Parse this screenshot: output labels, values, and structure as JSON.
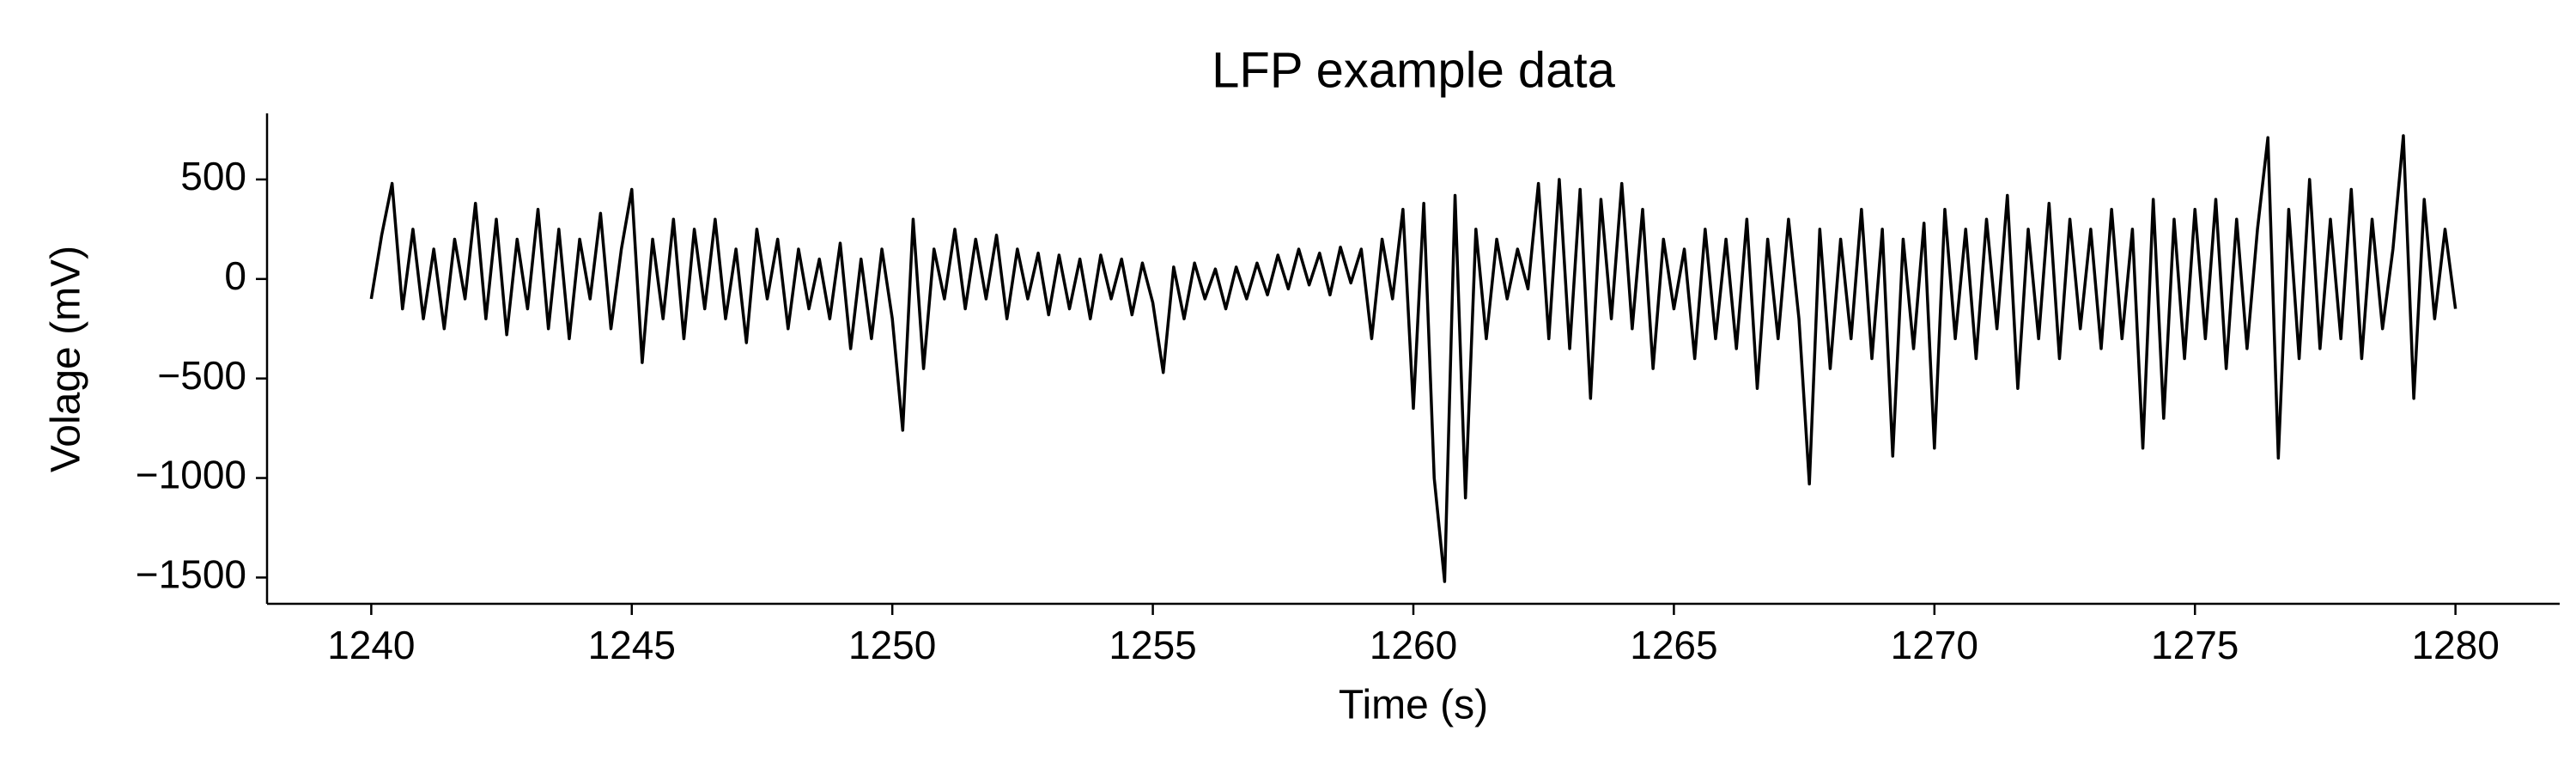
{
  "chart_data": {
    "type": "line",
    "title": "LFP example data",
    "xlabel": "Time (s)",
    "ylabel": "Volage (mV)",
    "color": "#000000",
    "xlim": [
      1238,
      1282
    ],
    "xticks": [
      1240,
      1245,
      1250,
      1255,
      1260,
      1265,
      1270,
      1275,
      1280
    ],
    "ylim": [
      -1632,
      832
    ],
    "yticks": [
      {
        "value": -1500,
        "label": "−1500"
      },
      {
        "value": -1000,
        "label": "−1000"
      },
      {
        "value": -500,
        "label": "−500"
      },
      0,
      500
    ],
    "x": [
      1240.0,
      1240.2,
      1240.4,
      1240.6,
      1240.8,
      1241.0,
      1241.2,
      1241.4,
      1241.6,
      1241.8,
      1242.0,
      1242.2,
      1242.4,
      1242.6,
      1242.8,
      1243.0,
      1243.2,
      1243.4,
      1243.6,
      1243.8,
      1244.0,
      1244.2,
      1244.4,
      1244.6,
      1244.8,
      1245.0,
      1245.2,
      1245.4,
      1245.6,
      1245.8,
      1246.0,
      1246.2,
      1246.4,
      1246.6,
      1246.8,
      1247.0,
      1247.2,
      1247.4,
      1247.6,
      1247.8,
      1248.0,
      1248.2,
      1248.4,
      1248.6,
      1248.8,
      1249.0,
      1249.2,
      1249.4,
      1249.6,
      1249.8,
      1250.0,
      1250.2,
      1250.4,
      1250.6,
      1250.8,
      1251.0,
      1251.2,
      1251.4,
      1251.6,
      1251.8,
      1252.0,
      1252.2,
      1252.4,
      1252.6,
      1252.8,
      1253.0,
      1253.2,
      1253.4,
      1253.6,
      1253.8,
      1254.0,
      1254.2,
      1254.4,
      1254.6,
      1254.8,
      1255.0,
      1255.2,
      1255.4,
      1255.6,
      1255.8,
      1256.0,
      1256.2,
      1256.4,
      1256.6,
      1256.8,
      1257.0,
      1257.2,
      1257.4,
      1257.6,
      1257.8,
      1258.0,
      1258.2,
      1258.4,
      1258.6,
      1258.8,
      1259.0,
      1259.2,
      1259.4,
      1259.6,
      1259.8,
      1260.0,
      1260.2,
      1260.4,
      1260.6,
      1260.8,
      1261.0,
      1261.2,
      1261.4,
      1261.6,
      1261.8,
      1262.0,
      1262.2,
      1262.4,
      1262.6,
      1262.8,
      1263.0,
      1263.2,
      1263.4,
      1263.6,
      1263.8,
      1264.0,
      1264.2,
      1264.4,
      1264.6,
      1264.8,
      1265.0,
      1265.2,
      1265.4,
      1265.6,
      1265.8,
      1266.0,
      1266.2,
      1266.4,
      1266.6,
      1266.8,
      1267.0,
      1267.2,
      1267.4,
      1267.6,
      1267.8,
      1268.0,
      1268.2,
      1268.4,
      1268.6,
      1268.8,
      1269.0,
      1269.2,
      1269.4,
      1269.6,
      1269.8,
      1270.0,
      1270.2,
      1270.4,
      1270.6,
      1270.8,
      1271.0,
      1271.2,
      1271.4,
      1271.6,
      1271.8,
      1272.0,
      1272.2,
      1272.4,
      1272.6,
      1272.8,
      1273.0,
      1273.2,
      1273.4,
      1273.6,
      1273.8,
      1274.0,
      1274.2,
      1274.4,
      1274.6,
      1274.8,
      1275.0,
      1275.2,
      1275.4,
      1275.6,
      1275.8,
      1276.0,
      1276.2,
      1276.4,
      1276.6,
      1276.8,
      1277.0,
      1277.2,
      1277.4,
      1277.6,
      1277.8,
      1278.0,
      1278.2,
      1278.4,
      1278.6,
      1278.8,
      1279.0,
      1279.2,
      1279.4,
      1279.6,
      1279.8,
      1280.0
    ],
    "values": [
      -100,
      220,
      480,
      -150,
      250,
      -200,
      150,
      -250,
      200,
      -100,
      380,
      -200,
      300,
      -280,
      200,
      -150,
      350,
      -250,
      250,
      -300,
      200,
      -100,
      330,
      -250,
      150,
      450,
      -420,
      200,
      -200,
      300,
      -300,
      250,
      -150,
      300,
      -200,
      150,
      -320,
      250,
      -100,
      200,
      -250,
      150,
      -150,
      100,
      -200,
      180,
      -350,
      100,
      -300,
      150,
      -200,
      -760,
      300,
      -450,
      150,
      -100,
      250,
      -150,
      200,
      -100,
      220,
      -200,
      150,
      -100,
      130,
      -180,
      120,
      -150,
      100,
      -200,
      120,
      -100,
      100,
      -180,
      80,
      -120,
      -470,
      60,
      -200,
      80,
      -100,
      50,
      -150,
      60,
      -100,
      80,
      -80,
      120,
      -50,
      150,
      -30,
      130,
      -80,
      160,
      -20,
      150,
      -300,
      200,
      -100,
      350,
      -650,
      380,
      -1000,
      -1520,
      420,
      -1100,
      250,
      -300,
      200,
      -100,
      150,
      -50,
      480,
      -300,
      500,
      -350,
      450,
      -600,
      400,
      -200,
      480,
      -250,
      350,
      -450,
      200,
      -150,
      150,
      -400,
      250,
      -300,
      200,
      -350,
      300,
      -550,
      200,
      -300,
      300,
      -200,
      -1030,
      250,
      -450,
      200,
      -300,
      350,
      -400,
      250,
      -890,
      200,
      -350,
      280,
      -850,
      350,
      -300,
      250,
      -400,
      300,
      -250,
      420,
      -550,
      250,
      -300,
      380,
      -400,
      300,
      -250,
      250,
      -350,
      350,
      -300,
      250,
      -850,
      400,
      -700,
      300,
      -400,
      350,
      -300,
      400,
      -450,
      300,
      -350,
      250,
      710,
      -900,
      350,
      -400,
      500,
      -350,
      300,
      -300,
      450,
      -400,
      300,
      -250,
      150,
      720,
      -600,
      400,
      -200,
      250,
      -150
    ]
  }
}
